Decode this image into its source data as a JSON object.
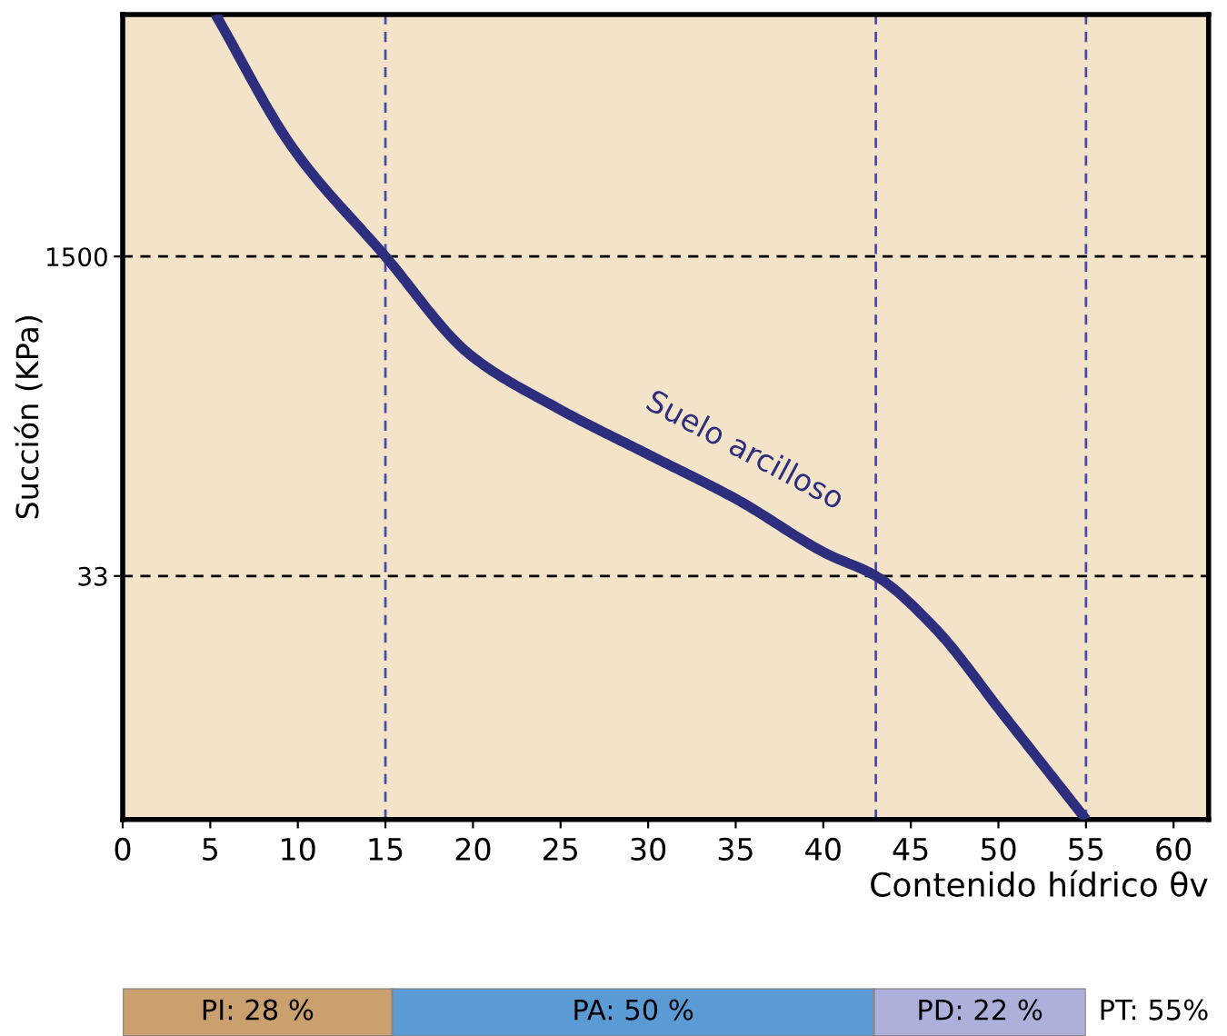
{
  "chart_data": [
    {
      "type": "line",
      "xlabel": "Contenido hídrico θv",
      "ylabel": "Succión (KPa)",
      "log": "y",
      "xlim": [
        0,
        62
      ],
      "xticks": [
        0,
        5,
        10,
        15,
        20,
        25,
        30,
        35,
        40,
        45,
        50,
        55,
        60
      ],
      "ylim": [
        1.8,
        27000
      ],
      "yticks": [
        33,
        1500
      ],
      "grid": false,
      "legend": false,
      "marker": "none",
      "line_style": "solid",
      "series": [
        {
          "name": "Suelo arcilloso",
          "color": "#2e2e7e",
          "x": [
            5.3,
            9.7,
            15,
            19.8,
            24.9,
            30,
            35.1,
            40.2,
            43,
            46.3,
            50.4,
            55
          ],
          "values": [
            27000,
            5500,
            1500,
            466,
            243,
            141,
            82,
            43,
            33,
            18,
            6.1,
            1.8
          ]
        }
      ],
      "ref_lines": [
        {
          "axis": "y",
          "value": 1500,
          "color": "#000000",
          "line_style": "dashed"
        },
        {
          "axis": "y",
          "value": 33,
          "color": "#000000",
          "line_style": "dashed"
        },
        {
          "axis": "x",
          "value": 15,
          "color": "#4a4aa8",
          "line_style": "dashed"
        },
        {
          "axis": "x",
          "value": 43,
          "color": "#4a4aa8",
          "line_style": "dashed"
        },
        {
          "axis": "x",
          "value": 55,
          "color": "#4a4aa8",
          "line_style": "dashed"
        }
      ]
    },
    {
      "type": "bar",
      "orientation": "horizontal",
      "stacked": true,
      "categories": [
        null
      ],
      "tick_labels": false,
      "legend": false,
      "series": [
        {
          "color": "#c9a06e",
          "values": [
            28
          ],
          "value_labels": [
            "PI: 28 %"
          ]
        },
        {
          "color": "#5b9bd5",
          "values": [
            50
          ],
          "value_labels": [
            "PA: 50 %"
          ]
        },
        {
          "color": "#adb0da",
          "values": [
            22
          ],
          "value_labels": [
            "PD: 22 %"
          ]
        }
      ],
      "annotations": [
        "PT: 55%"
      ]
    }
  ]
}
